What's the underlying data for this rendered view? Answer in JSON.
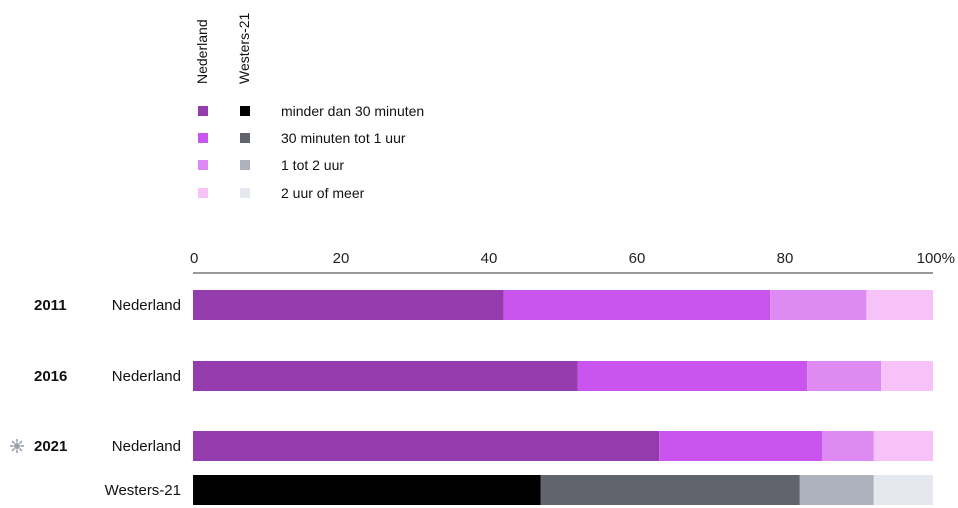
{
  "chart_data": {
    "type": "bar",
    "orientation": "horizontal",
    "stacked": true,
    "column_headers": [
      "Nederland",
      "Westers-21"
    ],
    "legend": [
      {
        "label": "minder dan 30 minuten",
        "colors": {
          "Nederland": "#943cad",
          "Westers-21": "#000000"
        }
      },
      {
        "label": "30 minuten tot 1 uur",
        "colors": {
          "Nederland": "#c955ee",
          "Westers-21": "#61646d"
        }
      },
      {
        "label": "1 tot 2 uur",
        "colors": {
          "Nederland": "#dd8bf3",
          "Westers-21": "#adb2bd"
        }
      },
      {
        "label": "2 uur of meer",
        "colors": {
          "Nederland": "#f6c2f7",
          "Westers-21": "#e6e8f0"
        }
      }
    ],
    "x_ticks": [
      "0",
      "20",
      "40",
      "60",
      "80",
      "100%"
    ],
    "xlim": [
      0,
      100
    ],
    "rows": [
      {
        "year": "2011",
        "label": "Nederland",
        "group": "Nederland",
        "values": [
          42,
          36,
          13,
          9
        ]
      },
      {
        "year": "2016",
        "label": "Nederland",
        "group": "Nederland",
        "values": [
          52,
          31,
          10,
          7
        ]
      },
      {
        "year": "2021",
        "label": "Nederland",
        "group": "Nederland",
        "values": [
          63,
          22,
          7,
          8
        ],
        "year_icon": "sun-icon"
      },
      {
        "year": "",
        "label": "Westers-21",
        "group": "Westers-21",
        "values": [
          47,
          35,
          10,
          8
        ]
      }
    ],
    "grid": false
  }
}
